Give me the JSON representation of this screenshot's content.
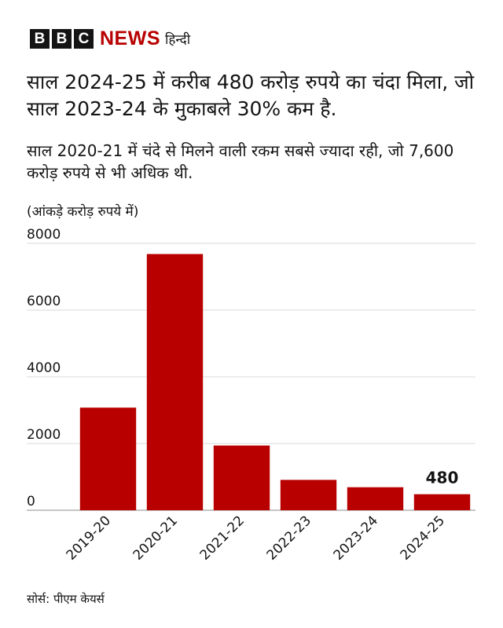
{
  "brand": {
    "blocks": [
      "B",
      "B",
      "C"
    ],
    "news": "NEWS",
    "language": "हिन्दी"
  },
  "headline": "साल 2024-25 में करीब 480 करोड़ रुपये का चंदा मिला, जो साल 2023-24 के मुकाबले 30% कम है.",
  "subhead": "साल 2020-21 में चंदे से मिलने वाली रकम सबसे ज्यादा रही, जो 7,600 करोड़ रुपये से भी अधिक थी.",
  "unit_note": "(आंकड़े करोड़ रुपये में)",
  "source": "सोर्स: पीएम केयर्स",
  "colors": {
    "bar": "#b80000",
    "grid": "#d9d9d9",
    "brand_red": "#b80000"
  },
  "chart_data": {
    "type": "bar",
    "categories": [
      "2019-20",
      "2020-21",
      "2021-22",
      "2022-23",
      "2023-24",
      "2024-25"
    ],
    "values": [
      3076,
      7680,
      1940,
      910,
      690,
      480
    ],
    "data_labels": [
      null,
      null,
      null,
      null,
      null,
      "480"
    ],
    "yticks": [
      "0",
      "2000",
      "4000",
      "6000",
      "8000"
    ],
    "ylim": [
      0,
      8000
    ],
    "grid": true,
    "title": "",
    "xlabel": "",
    "ylabel": ""
  }
}
